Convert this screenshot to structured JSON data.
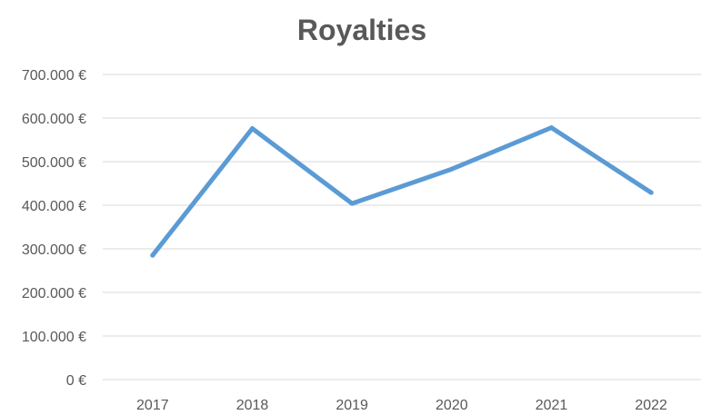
{
  "chart_data": {
    "type": "line",
    "title": "Royalties",
    "xlabel": "",
    "ylabel": "",
    "categories": [
      "2017",
      "2018",
      "2019",
      "2020",
      "2021",
      "2022"
    ],
    "series": [
      {
        "values": [
          285000,
          576000,
          404000,
          483000,
          578000,
          429000
        ],
        "color": "#5b9bd5"
      }
    ],
    "ylim": [
      0,
      700000
    ],
    "yticks": [
      0,
      100000,
      200000,
      300000,
      400000,
      500000,
      600000,
      700000
    ],
    "ytick_labels": [
      "0 €",
      "100.000 €",
      "200.000 €",
      "300.000 €",
      "400.000 €",
      "500.000 €",
      "600.000 €",
      "700.000 €"
    ],
    "grid": true,
    "legend": "none"
  }
}
